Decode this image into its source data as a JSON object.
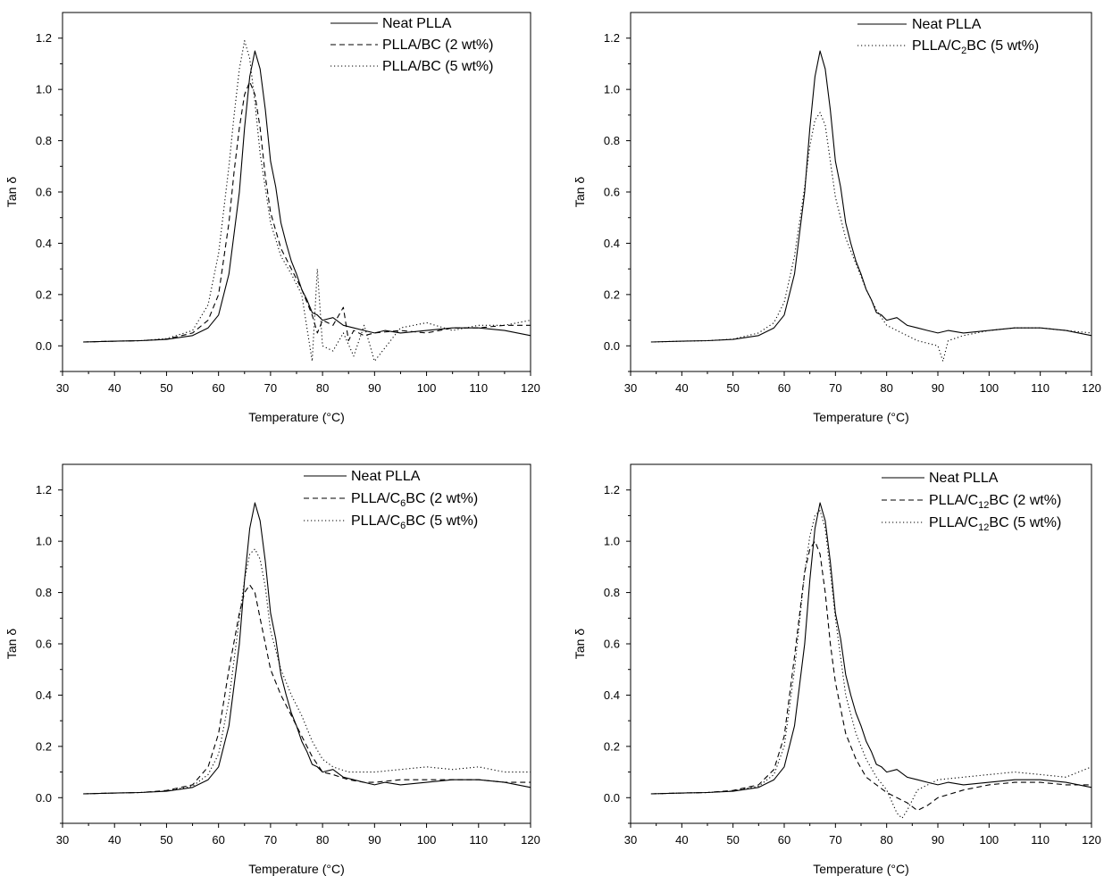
{
  "chart_data": [
    {
      "type": "line",
      "xlabel": "Temperature (°C)",
      "ylabel": "Tan δ",
      "xlim": [
        30,
        120
      ],
      "ylim": [
        -0.1,
        1.3
      ],
      "xticks": [
        "30",
        "40",
        "50",
        "60",
        "70",
        "80",
        "90",
        "100",
        "110",
        "120"
      ],
      "yticks": [
        "0.0",
        "0.2",
        "0.4",
        "0.6",
        "0.8",
        "1.0",
        "1.2"
      ],
      "legend_position": "top-right",
      "series": [
        {
          "name": "Neat PLLA",
          "style": "solid",
          "x": [
            34,
            40,
            45,
            50,
            55,
            58,
            60,
            62,
            64,
            65,
            66,
            67,
            68,
            69,
            70,
            71,
            72,
            73,
            74,
            75,
            76,
            77,
            78,
            79,
            80,
            82,
            84,
            86,
            88,
            90,
            92,
            95,
            100,
            105,
            110,
            115,
            120
          ],
          "y": [
            0.015,
            0.018,
            0.02,
            0.025,
            0.04,
            0.07,
            0.12,
            0.28,
            0.6,
            0.85,
            1.05,
            1.15,
            1.08,
            0.92,
            0.72,
            0.62,
            0.48,
            0.4,
            0.33,
            0.28,
            0.22,
            0.18,
            0.13,
            0.12,
            0.1,
            0.11,
            0.08,
            0.07,
            0.06,
            0.05,
            0.06,
            0.05,
            0.06,
            0.07,
            0.07,
            0.06,
            0.04
          ]
        },
        {
          "name": "PLLA/BC (2 wt%)",
          "style": "dashed",
          "x": [
            34,
            40,
            45,
            50,
            55,
            58,
            60,
            62,
            63,
            64,
            65,
            66,
            67,
            68,
            69,
            70,
            72,
            74,
            76,
            78,
            79,
            80,
            82,
            84,
            85,
            86,
            88,
            90,
            95,
            100,
            105,
            110,
            115,
            120
          ],
          "y": [
            0.015,
            0.018,
            0.02,
            0.026,
            0.05,
            0.1,
            0.2,
            0.48,
            0.68,
            0.85,
            0.98,
            1.03,
            0.98,
            0.85,
            0.66,
            0.52,
            0.38,
            0.3,
            0.22,
            0.12,
            0.05,
            0.1,
            0.08,
            0.15,
            0.02,
            0.06,
            0.04,
            0.05,
            0.06,
            0.05,
            0.07,
            0.07,
            0.08,
            0.08
          ]
        },
        {
          "name": "PLLA/BC (5 wt%)",
          "style": "dotted",
          "x": [
            34,
            40,
            45,
            50,
            55,
            58,
            60,
            62,
            63,
            64,
            65,
            66,
            67,
            68,
            70,
            72,
            74,
            76,
            78,
            79,
            80,
            82,
            84,
            86,
            88,
            90,
            95,
            100,
            105,
            110,
            115,
            120
          ],
          "y": [
            0.015,
            0.018,
            0.02,
            0.028,
            0.06,
            0.16,
            0.36,
            0.7,
            0.9,
            1.08,
            1.19,
            1.12,
            0.95,
            0.75,
            0.48,
            0.35,
            0.28,
            0.2,
            -0.06,
            0.3,
            0.0,
            -0.02,
            0.05,
            -0.04,
            0.08,
            -0.06,
            0.07,
            0.09,
            0.06,
            0.08,
            0.08,
            0.1
          ]
        }
      ]
    },
    {
      "type": "line",
      "xlabel": "Temperature (°C)",
      "ylabel": "Tan δ",
      "xlim": [
        30,
        120
      ],
      "ylim": [
        -0.1,
        1.3
      ],
      "xticks": [
        "30",
        "40",
        "50",
        "60",
        "70",
        "80",
        "90",
        "100",
        "110",
        "120"
      ],
      "yticks": [
        "0.0",
        "0.2",
        "0.4",
        "0.6",
        "0.8",
        "1.0",
        "1.2"
      ],
      "legend_position": "top-right",
      "series": [
        {
          "name": "Neat PLLA",
          "style": "solid",
          "x": [
            34,
            40,
            45,
            50,
            55,
            58,
            60,
            62,
            64,
            65,
            66,
            67,
            68,
            69,
            70,
            71,
            72,
            73,
            74,
            75,
            76,
            77,
            78,
            79,
            80,
            82,
            84,
            86,
            88,
            90,
            92,
            95,
            100,
            105,
            110,
            115,
            120
          ],
          "y": [
            0.015,
            0.018,
            0.02,
            0.025,
            0.04,
            0.07,
            0.12,
            0.28,
            0.6,
            0.85,
            1.05,
            1.15,
            1.08,
            0.92,
            0.72,
            0.62,
            0.48,
            0.4,
            0.33,
            0.28,
            0.22,
            0.18,
            0.13,
            0.12,
            0.1,
            0.11,
            0.08,
            0.07,
            0.06,
            0.05,
            0.06,
            0.05,
            0.06,
            0.07,
            0.07,
            0.06,
            0.04
          ]
        },
        {
          "name": "PLLA/C2BC (5 wt%)",
          "style": "dotted",
          "x": [
            34,
            40,
            45,
            50,
            55,
            58,
            60,
            62,
            64,
            65,
            66,
            67,
            68,
            69,
            70,
            72,
            74,
            76,
            78,
            80,
            82,
            84,
            86,
            88,
            90,
            91,
            92,
            95,
            100,
            105,
            110,
            115,
            120
          ],
          "y": [
            0.015,
            0.018,
            0.02,
            0.026,
            0.05,
            0.09,
            0.17,
            0.35,
            0.62,
            0.78,
            0.88,
            0.91,
            0.86,
            0.72,
            0.58,
            0.42,
            0.32,
            0.22,
            0.14,
            0.08,
            0.06,
            0.04,
            0.02,
            0.01,
            0.0,
            -0.06,
            0.02,
            0.04,
            0.06,
            0.07,
            0.07,
            0.06,
            0.05
          ]
        }
      ]
    },
    {
      "type": "line",
      "xlabel": "Temperature (°C)",
      "ylabel": "Tan δ",
      "xlim": [
        30,
        120
      ],
      "ylim": [
        -0.1,
        1.3
      ],
      "xticks": [
        "30",
        "40",
        "50",
        "60",
        "70",
        "80",
        "90",
        "100",
        "110",
        "120"
      ],
      "yticks": [
        "0.0",
        "0.2",
        "0.4",
        "0.6",
        "0.8",
        "1.0",
        "1.2"
      ],
      "legend_position": "top-right",
      "series": [
        {
          "name": "Neat PLLA",
          "style": "solid",
          "x": [
            34,
            40,
            45,
            50,
            55,
            58,
            60,
            62,
            64,
            65,
            66,
            67,
            68,
            69,
            70,
            71,
            72,
            73,
            74,
            75,
            76,
            77,
            78,
            79,
            80,
            82,
            84,
            86,
            88,
            90,
            92,
            95,
            100,
            105,
            110,
            115,
            120
          ],
          "y": [
            0.015,
            0.018,
            0.02,
            0.025,
            0.04,
            0.07,
            0.12,
            0.28,
            0.6,
            0.85,
            1.05,
            1.15,
            1.08,
            0.92,
            0.72,
            0.62,
            0.48,
            0.4,
            0.33,
            0.28,
            0.22,
            0.18,
            0.13,
            0.12,
            0.1,
            0.11,
            0.08,
            0.07,
            0.06,
            0.05,
            0.06,
            0.05,
            0.06,
            0.07,
            0.07,
            0.06,
            0.04
          ]
        },
        {
          "name": "PLLA/C6BC (2 wt%)",
          "style": "dashed",
          "x": [
            34,
            40,
            45,
            50,
            55,
            58,
            60,
            62,
            64,
            65,
            66,
            67,
            68,
            69,
            70,
            72,
            74,
            76,
            78,
            80,
            82,
            85,
            88,
            90,
            95,
            100,
            105,
            110,
            115,
            120
          ],
          "y": [
            0.015,
            0.018,
            0.02,
            0.028,
            0.05,
            0.12,
            0.25,
            0.5,
            0.72,
            0.8,
            0.83,
            0.8,
            0.7,
            0.6,
            0.5,
            0.4,
            0.32,
            0.24,
            0.16,
            0.1,
            0.09,
            0.07,
            0.06,
            0.06,
            0.07,
            0.07,
            0.07,
            0.07,
            0.06,
            0.06
          ]
        },
        {
          "name": "PLLA/C6BC (5 wt%)",
          "style": "dotted",
          "x": [
            34,
            40,
            45,
            50,
            55,
            58,
            60,
            62,
            64,
            65,
            66,
            67,
            68,
            69,
            70,
            72,
            74,
            76,
            78,
            80,
            82,
            85,
            90,
            95,
            100,
            105,
            110,
            115,
            120
          ],
          "y": [
            0.015,
            0.018,
            0.02,
            0.026,
            0.045,
            0.09,
            0.17,
            0.38,
            0.7,
            0.85,
            0.95,
            0.97,
            0.93,
            0.82,
            0.65,
            0.5,
            0.4,
            0.32,
            0.22,
            0.15,
            0.12,
            0.1,
            0.1,
            0.11,
            0.12,
            0.11,
            0.12,
            0.1,
            0.1
          ]
        }
      ]
    },
    {
      "type": "line",
      "xlabel": "Temperature (°C)",
      "ylabel": "Tan δ",
      "xlim": [
        30,
        120
      ],
      "ylim": [
        -0.1,
        1.3
      ],
      "xticks": [
        "30",
        "40",
        "50",
        "60",
        "70",
        "80",
        "90",
        "100",
        "110",
        "120"
      ],
      "yticks": [
        "0.0",
        "0.2",
        "0.4",
        "0.6",
        "0.8",
        "1.0",
        "1.2"
      ],
      "legend_position": "top-right",
      "series": [
        {
          "name": "Neat PLLA",
          "style": "solid",
          "x": [
            34,
            40,
            45,
            50,
            55,
            58,
            60,
            62,
            64,
            65,
            66,
            67,
            68,
            69,
            70,
            71,
            72,
            73,
            74,
            75,
            76,
            77,
            78,
            79,
            80,
            82,
            84,
            86,
            88,
            90,
            92,
            95,
            100,
            105,
            110,
            115,
            120
          ],
          "y": [
            0.015,
            0.018,
            0.02,
            0.025,
            0.04,
            0.07,
            0.12,
            0.28,
            0.6,
            0.85,
            1.05,
            1.15,
            1.08,
            0.92,
            0.72,
            0.62,
            0.48,
            0.4,
            0.33,
            0.28,
            0.22,
            0.18,
            0.13,
            0.12,
            0.1,
            0.11,
            0.08,
            0.07,
            0.06,
            0.05,
            0.06,
            0.05,
            0.06,
            0.07,
            0.07,
            0.06,
            0.04
          ]
        },
        {
          "name": "PLLA/C12BC (2 wt%)",
          "style": "dashed",
          "x": [
            34,
            40,
            45,
            50,
            55,
            58,
            60,
            62,
            64,
            65,
            66,
            67,
            68,
            69,
            70,
            72,
            74,
            76,
            78,
            80,
            82,
            84,
            86,
            88,
            90,
            95,
            100,
            105,
            110,
            115,
            120
          ],
          "y": [
            0.015,
            0.018,
            0.02,
            0.028,
            0.05,
            0.11,
            0.24,
            0.55,
            0.88,
            0.97,
            1.0,
            0.95,
            0.8,
            0.6,
            0.45,
            0.25,
            0.15,
            0.08,
            0.05,
            0.02,
            0.0,
            -0.02,
            -0.05,
            -0.03,
            0.0,
            0.03,
            0.05,
            0.06,
            0.06,
            0.05,
            0.05
          ]
        },
        {
          "name": "PLLA/C12BC (5 wt%)",
          "style": "dotted",
          "x": [
            34,
            40,
            45,
            50,
            55,
            58,
            60,
            62,
            64,
            65,
            66,
            67,
            68,
            69,
            70,
            72,
            74,
            76,
            78,
            80,
            82,
            83,
            84,
            86,
            90,
            95,
            100,
            105,
            110,
            115,
            120
          ],
          "y": [
            0.015,
            0.018,
            0.02,
            0.026,
            0.045,
            0.09,
            0.2,
            0.5,
            0.88,
            1.02,
            1.1,
            1.12,
            1.05,
            0.88,
            0.7,
            0.4,
            0.25,
            0.15,
            0.08,
            0.03,
            -0.06,
            -0.08,
            -0.05,
            0.03,
            0.07,
            0.08,
            0.09,
            0.1,
            0.09,
            0.08,
            0.12
          ]
        }
      ]
    }
  ]
}
